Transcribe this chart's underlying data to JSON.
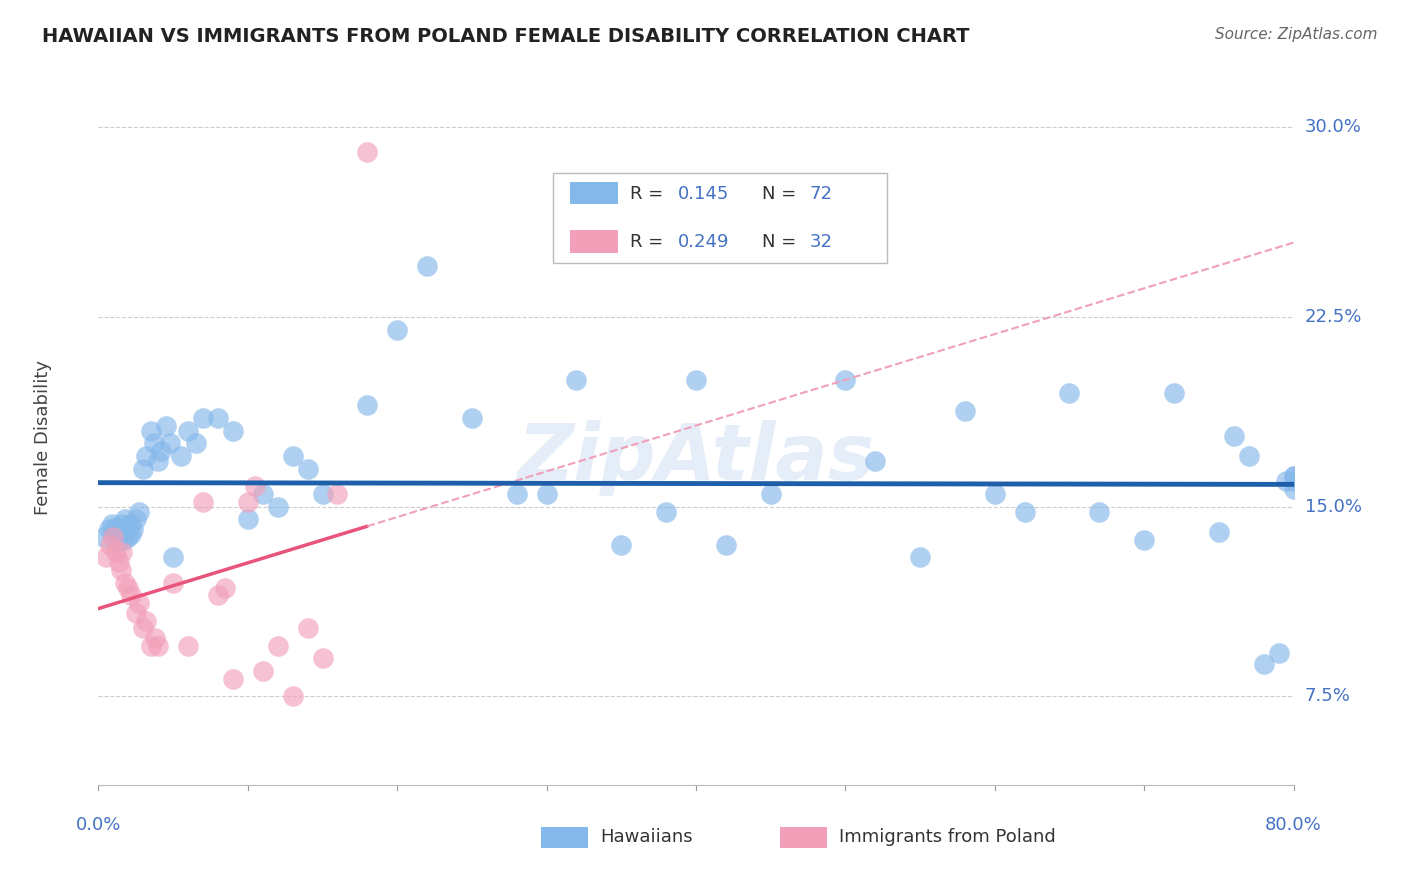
{
  "title": "HAWAIIAN VS IMMIGRANTS FROM POLAND FEMALE DISABILITY CORRELATION CHART",
  "source": "Source: ZipAtlas.com",
  "ylabel": "Female Disability",
  "xlim": [
    0.0,
    0.8
  ],
  "ylim": [
    0.04,
    0.315
  ],
  "yticks": [
    0.075,
    0.15,
    0.225,
    0.3
  ],
  "ytick_labels": [
    "7.5%",
    "15.0%",
    "22.5%",
    "30.0%"
  ],
  "xticks": [
    0.0,
    0.1,
    0.2,
    0.3,
    0.4,
    0.5,
    0.6,
    0.7,
    0.8
  ],
  "color_blue": "#85b8ea",
  "color_pink": "#f2a0ba",
  "line_blue": "#1f5faa",
  "line_pink_solid": "#e8547a",
  "line_pink_dashed": "#f0a0b8",
  "watermark": "ZipAtlas",
  "legend_R1": "0.145",
  "legend_N1": "72",
  "legend_R2": "0.249",
  "legend_N2": "32",
  "legend_label_1": "Hawaiians",
  "legend_label_2": "Immigrants from Poland",
  "hawaiians_x": [
    0.004,
    0.007,
    0.009,
    0.01,
    0.011,
    0.012,
    0.013,
    0.014,
    0.015,
    0.016,
    0.017,
    0.018,
    0.019,
    0.02,
    0.021,
    0.022,
    0.023,
    0.025,
    0.027,
    0.03,
    0.032,
    0.035,
    0.037,
    0.04,
    0.042,
    0.045,
    0.048,
    0.05,
    0.055,
    0.06,
    0.065,
    0.07,
    0.08,
    0.09,
    0.1,
    0.11,
    0.12,
    0.13,
    0.14,
    0.15,
    0.18,
    0.2,
    0.22,
    0.25,
    0.28,
    0.3,
    0.32,
    0.35,
    0.38,
    0.4,
    0.42,
    0.45,
    0.5,
    0.52,
    0.55,
    0.58,
    0.6,
    0.62,
    0.65,
    0.67,
    0.7,
    0.72,
    0.75,
    0.76,
    0.77,
    0.78,
    0.79,
    0.795,
    0.8,
    0.8,
    0.8,
    0.8
  ],
  "hawaiians_y": [
    0.138,
    0.141,
    0.143,
    0.14,
    0.138,
    0.142,
    0.139,
    0.136,
    0.14,
    0.143,
    0.137,
    0.145,
    0.142,
    0.138,
    0.143,
    0.139,
    0.141,
    0.145,
    0.148,
    0.165,
    0.17,
    0.18,
    0.175,
    0.168,
    0.172,
    0.182,
    0.175,
    0.13,
    0.17,
    0.18,
    0.175,
    0.185,
    0.185,
    0.18,
    0.145,
    0.155,
    0.15,
    0.17,
    0.165,
    0.155,
    0.19,
    0.22,
    0.245,
    0.185,
    0.155,
    0.155,
    0.2,
    0.135,
    0.148,
    0.2,
    0.135,
    0.155,
    0.2,
    0.168,
    0.13,
    0.188,
    0.155,
    0.148,
    0.195,
    0.148,
    0.137,
    0.195,
    0.14,
    0.178,
    0.17,
    0.088,
    0.092,
    0.16,
    0.157,
    0.162,
    0.162,
    0.16
  ],
  "poland_x": [
    0.005,
    0.008,
    0.01,
    0.012,
    0.014,
    0.015,
    0.016,
    0.018,
    0.02,
    0.022,
    0.025,
    0.027,
    0.03,
    0.032,
    0.035,
    0.038,
    0.04,
    0.05,
    0.06,
    0.07,
    0.08,
    0.085,
    0.09,
    0.1,
    0.105,
    0.11,
    0.12,
    0.13,
    0.14,
    0.15,
    0.16,
    0.18
  ],
  "poland_y": [
    0.13,
    0.135,
    0.138,
    0.132,
    0.128,
    0.125,
    0.132,
    0.12,
    0.118,
    0.115,
    0.108,
    0.112,
    0.102,
    0.105,
    0.095,
    0.098,
    0.095,
    0.12,
    0.095,
    0.152,
    0.115,
    0.118,
    0.082,
    0.152,
    0.158,
    0.085,
    0.095,
    0.075,
    0.102,
    0.09,
    0.155,
    0.29
  ]
}
